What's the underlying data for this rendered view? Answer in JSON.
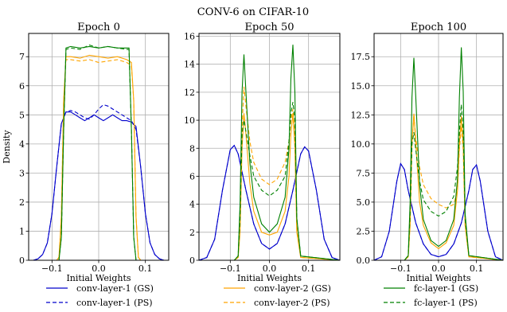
{
  "figure_title": "CONV-6 on CIFAR-10",
  "chart_data": [
    {
      "type": "line",
      "title": "Epoch 0",
      "xlabel": "Initial Weights",
      "ylabel": "Density",
      "xlim": [
        -0.15,
        0.15
      ],
      "ylim": [
        0,
        7.8
      ],
      "xticks": [
        -0.1,
        0.0,
        0.1
      ],
      "xtick_labels": [
        "−0.1",
        "0.0",
        "0.1"
      ],
      "yticks": [
        0,
        1,
        2,
        3,
        4,
        5,
        6,
        7
      ],
      "ytick_labels": [
        "0",
        "1",
        "2",
        "3",
        "4",
        "5",
        "6",
        "7"
      ],
      "grid": true,
      "series": [
        {
          "name": "conv-layer-1 (GS)",
          "color": "#0000cc",
          "dash": "solid",
          "x": [
            -0.14,
            -0.13,
            -0.12,
            -0.11,
            -0.1,
            -0.09,
            -0.08,
            -0.07,
            -0.06,
            -0.05,
            -0.04,
            -0.03,
            -0.02,
            -0.01,
            0.0,
            0.01,
            0.02,
            0.03,
            0.04,
            0.05,
            0.06,
            0.07,
            0.08,
            0.09,
            0.1,
            0.11,
            0.12,
            0.13,
            0.14
          ],
          "y": [
            0.0,
            0.05,
            0.2,
            0.6,
            1.6,
            3.2,
            4.7,
            5.1,
            5.1,
            5.0,
            4.9,
            4.8,
            4.9,
            5.0,
            4.9,
            4.8,
            4.9,
            5.0,
            4.9,
            4.8,
            4.8,
            4.75,
            4.6,
            3.2,
            1.6,
            0.6,
            0.2,
            0.05,
            0.0
          ]
        },
        {
          "name": "conv-layer-1 (PS)",
          "color": "#0000cc",
          "dash": "dashed",
          "x": [
            -0.14,
            -0.13,
            -0.12,
            -0.11,
            -0.1,
            -0.09,
            -0.08,
            -0.07,
            -0.06,
            -0.05,
            -0.04,
            -0.03,
            -0.02,
            -0.01,
            0.0,
            0.01,
            0.02,
            0.03,
            0.04,
            0.05,
            0.06,
            0.07,
            0.08,
            0.09,
            0.1,
            0.11,
            0.12,
            0.13,
            0.14
          ],
          "y": [
            0.0,
            0.05,
            0.2,
            0.6,
            1.6,
            3.2,
            4.7,
            5.1,
            5.15,
            5.1,
            5.0,
            4.9,
            4.85,
            5.0,
            5.2,
            5.35,
            5.3,
            5.2,
            5.1,
            5.0,
            4.9,
            4.8,
            4.5,
            3.2,
            1.6,
            0.6,
            0.2,
            0.05,
            0.0
          ]
        },
        {
          "name": "conv-layer-2 (GS)",
          "color": "#ffa500",
          "dash": "solid",
          "x": [
            -0.14,
            -0.09,
            -0.085,
            -0.08,
            -0.075,
            -0.07,
            -0.06,
            -0.04,
            -0.02,
            0.0,
            0.02,
            0.04,
            0.06,
            0.07,
            0.075,
            0.08,
            0.085,
            0.09,
            0.14
          ],
          "y": [
            0.0,
            0.0,
            0.1,
            1.5,
            5.5,
            7.0,
            7.0,
            6.95,
            7.05,
            7.0,
            6.95,
            7.0,
            6.9,
            6.8,
            5.5,
            1.5,
            0.1,
            0.0,
            0.0
          ]
        },
        {
          "name": "conv-layer-2 (PS)",
          "color": "#ffa500",
          "dash": "dashed",
          "x": [
            -0.14,
            -0.09,
            -0.085,
            -0.08,
            -0.075,
            -0.07,
            -0.06,
            -0.04,
            -0.02,
            0.0,
            0.02,
            0.04,
            0.06,
            0.07,
            0.075,
            0.08,
            0.085,
            0.09,
            0.14
          ],
          "y": [
            0.0,
            0.0,
            0.1,
            1.5,
            5.5,
            6.9,
            6.9,
            6.85,
            6.9,
            6.8,
            6.85,
            6.9,
            6.8,
            6.7,
            5.5,
            1.5,
            0.1,
            0.0,
            0.0
          ]
        },
        {
          "name": "fc-layer-1 (GS)",
          "color": "#008000",
          "dash": "solid",
          "x": [
            -0.14,
            -0.085,
            -0.08,
            -0.075,
            -0.07,
            -0.06,
            -0.04,
            -0.02,
            0.0,
            0.02,
            0.04,
            0.06,
            0.065,
            0.07,
            0.075,
            0.08,
            0.14
          ],
          "y": [
            0.0,
            0.0,
            0.8,
            4.5,
            7.3,
            7.35,
            7.3,
            7.35,
            7.3,
            7.35,
            7.3,
            7.3,
            7.3,
            4.5,
            0.8,
            0.0,
            0.0
          ]
        },
        {
          "name": "fc-layer-1 (PS)",
          "color": "#008000",
          "dash": "dashed",
          "x": [
            -0.14,
            -0.085,
            -0.08,
            -0.075,
            -0.07,
            -0.06,
            -0.04,
            -0.02,
            0.0,
            0.02,
            0.04,
            0.06,
            0.065,
            0.07,
            0.075,
            0.08,
            0.14
          ],
          "y": [
            0.0,
            0.0,
            0.8,
            4.5,
            7.25,
            7.3,
            7.25,
            7.4,
            7.3,
            7.35,
            7.3,
            7.25,
            7.25,
            4.5,
            0.8,
            0.0,
            0.0
          ]
        }
      ]
    },
    {
      "type": "line",
      "title": "Epoch 50",
      "xlabel": "Initial Weights",
      "ylabel": "",
      "xlim": [
        -0.18,
        0.18
      ],
      "ylim": [
        0,
        16.2
      ],
      "xticks": [
        -0.1,
        0.0,
        0.1
      ],
      "xtick_labels": [
        "−0.1",
        "0.0",
        "0.1"
      ],
      "yticks": [
        0,
        2,
        4,
        6,
        8,
        10,
        12,
        14,
        16
      ],
      "ytick_labels": [
        "0",
        "2",
        "4",
        "6",
        "8",
        "10",
        "12",
        "14",
        "16"
      ],
      "grid": true,
      "series": [
        {
          "name": "conv-layer-1 (GS)",
          "color": "#0000cc",
          "dash": "solid",
          "x": [
            -0.18,
            -0.16,
            -0.14,
            -0.12,
            -0.1,
            -0.09,
            -0.08,
            -0.06,
            -0.04,
            -0.02,
            0.0,
            0.02,
            0.04,
            0.06,
            0.08,
            0.09,
            0.1,
            0.12,
            0.14,
            0.16,
            0.18
          ],
          "y": [
            0.0,
            0.2,
            1.5,
            5.0,
            7.9,
            8.2,
            7.6,
            5.0,
            2.6,
            1.2,
            0.8,
            1.2,
            2.6,
            5.0,
            7.6,
            8.1,
            7.8,
            5.0,
            1.5,
            0.2,
            0.0
          ]
        },
        {
          "name": "conv-layer-1 (PS)",
          "color": "#0000cc",
          "dash": "dashed",
          "x": [
            -0.18,
            -0.16,
            -0.14,
            -0.12,
            -0.1,
            -0.09,
            -0.08,
            -0.06,
            -0.04,
            -0.02,
            0.0,
            0.02,
            0.04,
            0.06,
            0.08,
            0.09,
            0.1,
            0.12,
            0.14,
            0.16,
            0.18
          ],
          "y": [
            0.0,
            0.2,
            1.5,
            5.0,
            7.9,
            8.2,
            7.6,
            5.0,
            2.6,
            1.2,
            0.8,
            1.2,
            2.6,
            5.0,
            7.6,
            8.1,
            7.8,
            5.0,
            1.5,
            0.2,
            0.0
          ]
        },
        {
          "name": "conv-layer-2 (GS)",
          "color": "#ffa500",
          "dash": "solid",
          "x": [
            -0.18,
            -0.09,
            -0.08,
            -0.075,
            -0.07,
            -0.065,
            -0.06,
            -0.05,
            -0.04,
            -0.02,
            0.0,
            0.02,
            0.04,
            0.05,
            0.055,
            0.06,
            0.065,
            0.07,
            0.08,
            0.18
          ],
          "y": [
            0.0,
            0.0,
            0.2,
            2.0,
            8.0,
            10.5,
            9.0,
            5.5,
            3.5,
            2.0,
            1.8,
            2.0,
            3.5,
            6.0,
            9.0,
            10.5,
            8.0,
            2.0,
            0.2,
            0.0
          ]
        },
        {
          "name": "conv-layer-2 (PS)",
          "color": "#ffa500",
          "dash": "dashed",
          "x": [
            -0.18,
            -0.09,
            -0.08,
            -0.075,
            -0.07,
            -0.065,
            -0.06,
            -0.05,
            -0.04,
            -0.02,
            0.0,
            0.02,
            0.04,
            0.05,
            0.055,
            0.06,
            0.065,
            0.07,
            0.08,
            0.18
          ],
          "y": [
            0.0,
            0.0,
            0.2,
            2.5,
            9.5,
            12.4,
            11.0,
            8.5,
            7.0,
            5.8,
            5.4,
            5.8,
            7.0,
            8.5,
            10.0,
            10.8,
            9.0,
            2.5,
            0.2,
            0.0
          ]
        },
        {
          "name": "fc-layer-1 (GS)",
          "color": "#008000",
          "dash": "solid",
          "x": [
            -0.18,
            -0.09,
            -0.08,
            -0.075,
            -0.07,
            -0.065,
            -0.06,
            -0.05,
            -0.04,
            -0.02,
            0.0,
            0.02,
            0.04,
            0.05,
            0.055,
            0.06,
            0.065,
            0.07,
            0.08,
            0.18
          ],
          "y": [
            0.0,
            0.0,
            0.3,
            4.0,
            12.0,
            14.7,
            12.0,
            7.0,
            4.5,
            2.6,
            2.0,
            2.6,
            4.5,
            8.0,
            13.0,
            15.4,
            12.0,
            3.0,
            0.3,
            0.0
          ]
        },
        {
          "name": "fc-layer-1 (PS)",
          "color": "#008000",
          "dash": "dashed",
          "x": [
            -0.18,
            -0.09,
            -0.08,
            -0.075,
            -0.07,
            -0.065,
            -0.06,
            -0.05,
            -0.04,
            -0.02,
            0.0,
            0.02,
            0.04,
            0.05,
            0.055,
            0.06,
            0.065,
            0.07,
            0.08,
            0.18
          ],
          "y": [
            0.0,
            0.0,
            0.3,
            3.0,
            9.0,
            10.0,
            9.2,
            7.5,
            6.0,
            5.0,
            4.6,
            5.0,
            6.0,
            8.5,
            10.5,
            11.3,
            10.0,
            3.0,
            0.3,
            0.0
          ]
        }
      ]
    },
    {
      "type": "line",
      "title": "Epoch 100",
      "xlabel": "Initial Weights",
      "ylabel": "",
      "xlim": [
        -0.17,
        0.17
      ],
      "ylim": [
        0,
        19.5
      ],
      "xticks": [
        -0.1,
        0.0,
        0.1
      ],
      "xtick_labels": [
        "−0.1",
        "0.0",
        "0.1"
      ],
      "yticks": [
        0,
        2.5,
        5,
        7.5,
        10,
        12.5,
        15,
        17.5
      ],
      "ytick_labels": [
        "0.0",
        "2.5",
        "5.0",
        "7.5",
        "10.0",
        "12.5",
        "15.0",
        "17.5"
      ],
      "grid": true,
      "series": [
        {
          "name": "conv-layer-1 (GS)",
          "color": "#0000cc",
          "dash": "solid",
          "x": [
            -0.17,
            -0.15,
            -0.13,
            -0.11,
            -0.1,
            -0.09,
            -0.08,
            -0.06,
            -0.04,
            -0.02,
            0.0,
            0.02,
            0.04,
            0.06,
            0.08,
            0.09,
            0.1,
            0.11,
            0.13,
            0.15,
            0.17
          ],
          "y": [
            0.0,
            0.3,
            2.5,
            6.8,
            8.3,
            7.8,
            6.0,
            3.2,
            1.4,
            0.5,
            0.3,
            0.5,
            1.4,
            3.2,
            6.0,
            7.8,
            8.2,
            6.8,
            2.5,
            0.3,
            0.0
          ]
        },
        {
          "name": "conv-layer-1 (PS)",
          "color": "#0000cc",
          "dash": "dashed",
          "x": [
            -0.17,
            -0.15,
            -0.13,
            -0.11,
            -0.1,
            -0.09,
            -0.08,
            -0.06,
            -0.04,
            -0.02,
            0.0,
            0.02,
            0.04,
            0.06,
            0.08,
            0.09,
            0.1,
            0.11,
            0.13,
            0.15,
            0.17
          ],
          "y": [
            0.0,
            0.3,
            2.5,
            6.8,
            8.3,
            7.8,
            6.0,
            3.2,
            1.4,
            0.5,
            0.3,
            0.5,
            1.4,
            3.2,
            6.0,
            7.8,
            8.2,
            6.8,
            2.5,
            0.3,
            0.0
          ]
        },
        {
          "name": "conv-layer-2 (GS)",
          "color": "#ffa500",
          "dash": "solid",
          "x": [
            -0.17,
            -0.09,
            -0.08,
            -0.075,
            -0.07,
            -0.065,
            -0.06,
            -0.05,
            -0.04,
            -0.02,
            0.0,
            0.02,
            0.04,
            0.05,
            0.055,
            0.06,
            0.065,
            0.07,
            0.08,
            0.17
          ],
          "y": [
            0.0,
            0.0,
            0.3,
            3.0,
            10.0,
            12.6,
            10.0,
            5.0,
            3.0,
            1.5,
            1.0,
            1.5,
            3.0,
            6.0,
            10.0,
            12.4,
            10.0,
            3.0,
            0.3,
            0.0
          ]
        },
        {
          "name": "conv-layer-2 (PS)",
          "color": "#ffa500",
          "dash": "dashed",
          "x": [
            -0.17,
            -0.09,
            -0.08,
            -0.075,
            -0.07,
            -0.065,
            -0.06,
            -0.05,
            -0.04,
            -0.02,
            0.0,
            0.02,
            0.04,
            0.05,
            0.055,
            0.06,
            0.065,
            0.07,
            0.08,
            0.17
          ],
          "y": [
            0.0,
            0.0,
            0.3,
            3.5,
            10.0,
            12.5,
            10.5,
            8.0,
            6.5,
            5.3,
            4.8,
            4.5,
            4.8,
            6.0,
            9.5,
            11.5,
            9.5,
            3.0,
            0.3,
            0.0
          ]
        },
        {
          "name": "fc-layer-1 (GS)",
          "color": "#008000",
          "dash": "solid",
          "x": [
            -0.17,
            -0.09,
            -0.08,
            -0.075,
            -0.07,
            -0.065,
            -0.06,
            -0.05,
            -0.04,
            -0.02,
            0.0,
            0.02,
            0.04,
            0.05,
            0.055,
            0.06,
            0.065,
            0.07,
            0.08,
            0.17
          ],
          "y": [
            0.0,
            0.0,
            0.4,
            5.0,
            14.0,
            17.4,
            14.0,
            6.5,
            3.5,
            1.7,
            1.2,
            1.7,
            3.5,
            7.0,
            14.0,
            18.3,
            14.5,
            4.0,
            0.4,
            0.0
          ]
        },
        {
          "name": "fc-layer-1 (PS)",
          "color": "#008000",
          "dash": "dashed",
          "x": [
            -0.17,
            -0.09,
            -0.08,
            -0.075,
            -0.07,
            -0.065,
            -0.06,
            -0.05,
            -0.04,
            -0.02,
            0.0,
            0.02,
            0.04,
            0.05,
            0.055,
            0.06,
            0.065,
            0.07,
            0.08,
            0.17
          ],
          "y": [
            0.0,
            0.0,
            0.4,
            4.0,
            10.0,
            11.0,
            9.5,
            6.8,
            5.2,
            4.2,
            3.8,
            4.2,
            5.5,
            8.0,
            11.0,
            13.4,
            11.0,
            3.5,
            0.4,
            0.0
          ]
        }
      ]
    }
  ],
  "legend": [
    {
      "label": "conv-layer-1 (GS)",
      "color": "#0000cc",
      "dash": "solid"
    },
    {
      "label": "conv-layer-1 (PS)",
      "color": "#0000cc",
      "dash": "dashed"
    },
    {
      "label": "conv-layer-2 (GS)",
      "color": "#ffa500",
      "dash": "solid"
    },
    {
      "label": "conv-layer-2 (PS)",
      "color": "#ffa500",
      "dash": "dashed"
    },
    {
      "label": "fc-layer-1 (GS)",
      "color": "#008000",
      "dash": "solid"
    },
    {
      "label": "fc-layer-1 (PS)",
      "color": "#008000",
      "dash": "dashed"
    }
  ]
}
